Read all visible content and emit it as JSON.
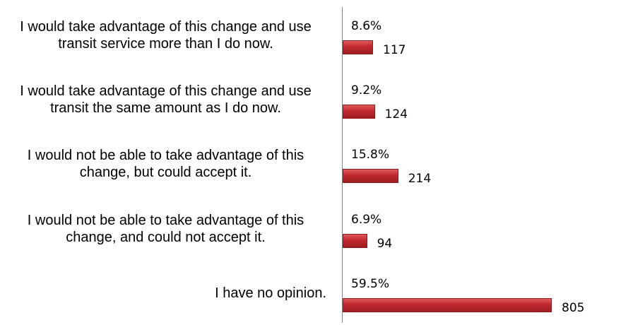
{
  "chart_data": {
    "type": "barh",
    "categories": [
      "I would take advantage of this change and use transit service more than I do now.",
      "I would take advantage of this change and use transit the same amount as I do now.",
      "I would not be able to take advantage of this change, but could accept it.",
      "I would not be able to take advantage of this change, and could not accept it.",
      "I have no opinion."
    ],
    "values": [
      117,
      124,
      214,
      94,
      805
    ],
    "percentages": [
      8.6,
      9.2,
      15.8,
      6.9,
      59.5
    ],
    "percentage_labels": [
      "8.6%",
      "9.2%",
      "15.8%",
      "6.9%",
      "59.5%"
    ],
    "color": "#c0282d"
  }
}
